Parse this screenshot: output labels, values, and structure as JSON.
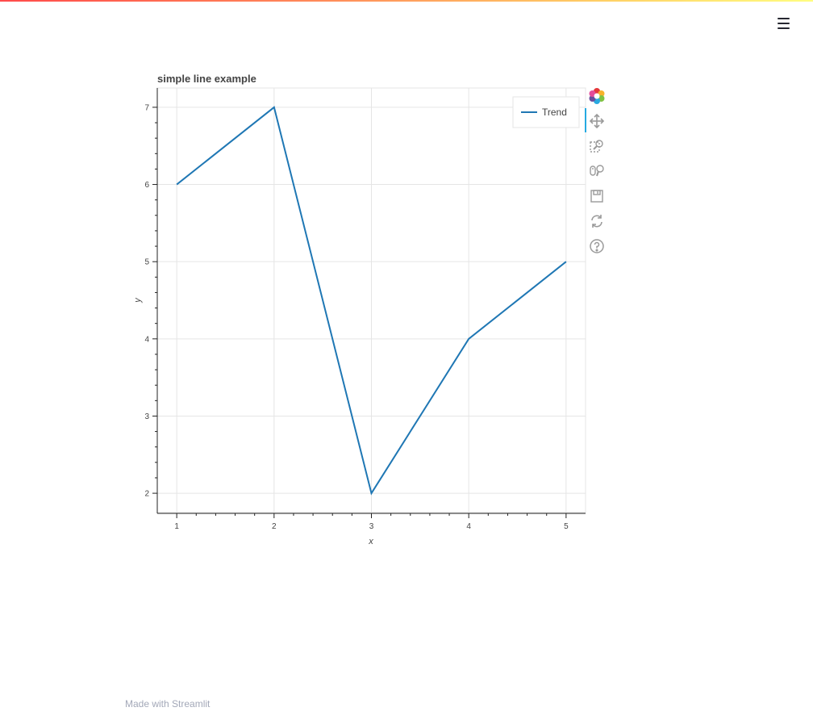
{
  "app": {
    "footer_text": "Made with Streamlit",
    "menu_icon": "hamburger-menu-icon"
  },
  "chart_data": {
    "type": "line",
    "title": "simple line example",
    "xlabel": "x",
    "ylabel": "y",
    "x": [
      1,
      2,
      3,
      4,
      5
    ],
    "series": [
      {
        "name": "Trend",
        "values": [
          6,
          7,
          2,
          4,
          5
        ],
        "color": "#1f77b4"
      }
    ],
    "xlim": [
      0.8,
      5.2
    ],
    "ylim": [
      1.75,
      7.25
    ],
    "xticks": [
      "1",
      "2",
      "3",
      "4",
      "5"
    ],
    "yticks": [
      "2",
      "3",
      "4",
      "5",
      "6",
      "7"
    ],
    "grid": true,
    "legend_position": "top-right"
  },
  "toolbar": {
    "tools": [
      {
        "icon": "bokeh-logo-icon"
      },
      {
        "icon": "pan-icon"
      },
      {
        "icon": "box-zoom-icon"
      },
      {
        "icon": "wheel-zoom-icon"
      },
      {
        "icon": "save-icon"
      },
      {
        "icon": "reset-icon"
      },
      {
        "icon": "help-icon"
      }
    ]
  }
}
